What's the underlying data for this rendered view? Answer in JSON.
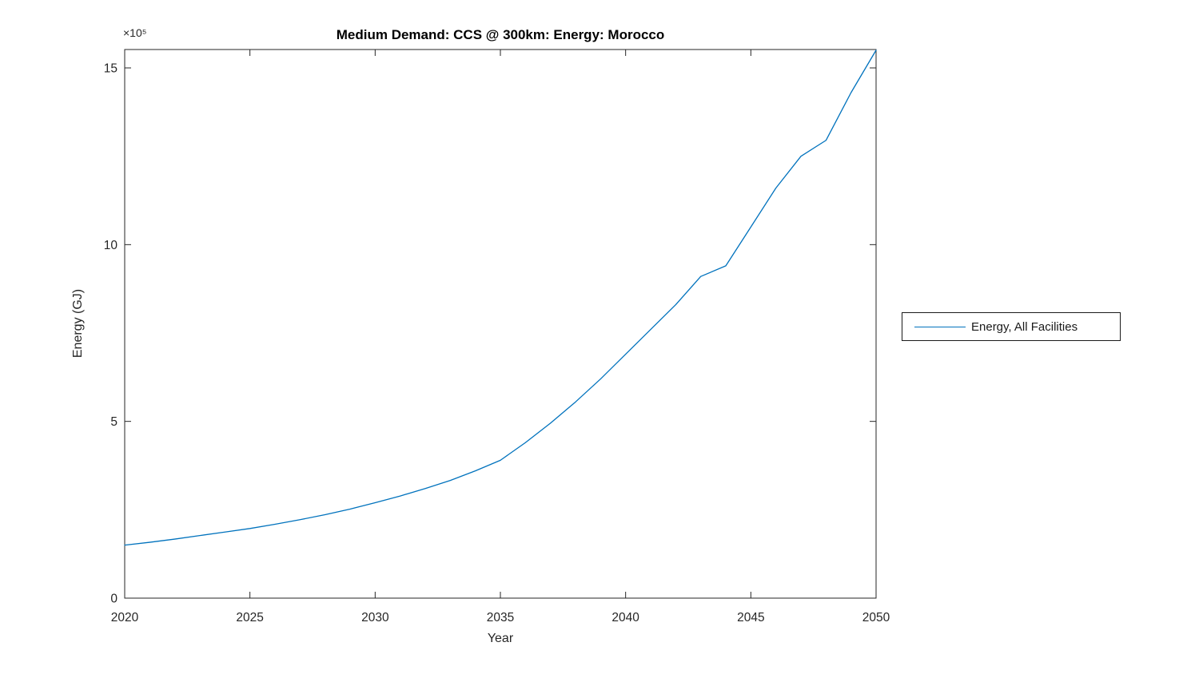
{
  "title": "Medium Demand: CCS @ 300km: Energy: Morocco",
  "colors": {
    "line": "#0072BD",
    "axis": "#262626",
    "title": "#000000",
    "background": "#ffffff",
    "legend_border": "#1a1a1a"
  },
  "chart_data": {
    "type": "line",
    "title": "Medium Demand: CCS @ 300km: Energy: Morocco",
    "xlabel": "Year",
    "ylabel": "Energy (GJ)",
    "y_multiplier_label": "×10⁵",
    "xlim": [
      2020,
      2050
    ],
    "ylim": [
      0,
      1552000
    ],
    "x_ticks": [
      2020,
      2025,
      2030,
      2035,
      2040,
      2045,
      2050
    ],
    "x_tick_labels": [
      "2020",
      "2025",
      "2030",
      "2035",
      "2040",
      "2045",
      "2050"
    ],
    "y_ticks": [
      0,
      500000,
      1000000,
      1500000
    ],
    "y_tick_labels": [
      "0",
      "5",
      "10",
      "15"
    ],
    "grid": false,
    "legend": {
      "position": "right-outside",
      "entries": [
        {
          "label": "Energy, All Facilities",
          "color": "#0072BD"
        }
      ]
    },
    "series": [
      {
        "name": "Energy, All Facilities",
        "color": "#0072BD",
        "x": [
          2020,
          2021,
          2022,
          2023,
          2024,
          2025,
          2026,
          2027,
          2028,
          2029,
          2030,
          2031,
          2032,
          2033,
          2034,
          2035,
          2036,
          2037,
          2038,
          2039,
          2040,
          2041,
          2042,
          2043,
          2044,
          2045,
          2046,
          2047,
          2048,
          2049,
          2050
        ],
        "y": [
          150000,
          158000,
          167000,
          177000,
          187000,
          197000,
          209000,
          222000,
          236000,
          252000,
          270000,
          289000,
          310000,
          333000,
          360000,
          390000,
          440000,
          495000,
          555000,
          620000,
          690000,
          760000,
          830000,
          910000,
          940000,
          1050000,
          1160000,
          1250000,
          1295000,
          1430000,
          1550000
        ]
      }
    ]
  }
}
